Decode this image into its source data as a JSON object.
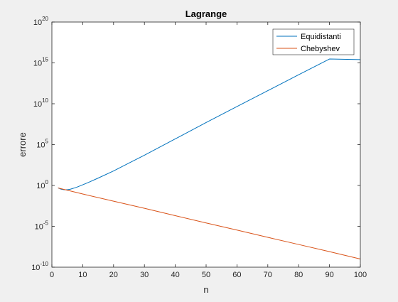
{
  "chart_data": {
    "type": "line",
    "title": "Lagrange",
    "xlabel": "n",
    "ylabel": "errore",
    "xlim": [
      0,
      100
    ],
    "ylim": [
      1e-10,
      1e+20
    ],
    "yscale": "log",
    "xticks": [
      0,
      10,
      20,
      30,
      40,
      50,
      60,
      70,
      80,
      90,
      100
    ],
    "yticks": [
      {
        "base": "10",
        "exp": "-10",
        "value": 1e-10
      },
      {
        "base": "10",
        "exp": "-5",
        "value": 1e-05
      },
      {
        "base": "10",
        "exp": "0",
        "value": 1
      },
      {
        "base": "10",
        "exp": "5",
        "value": 100000.0
      },
      {
        "base": "10",
        "exp": "10",
        "value": 10000000000.0
      },
      {
        "base": "10",
        "exp": "15",
        "value": 1000000000000000.0
      },
      {
        "base": "10",
        "exp": "20",
        "value": 1e+20
      }
    ],
    "grid": false,
    "legend": "top-right",
    "series": [
      {
        "name": "Equidistanti",
        "color": "#0072bd",
        "x": [
          2,
          3,
          4,
          5,
          6,
          8,
          10,
          12,
          15,
          20,
          25,
          30,
          40,
          50,
          60,
          70,
          80,
          90,
          100
        ],
        "y": [
          0.5,
          0.35,
          0.3,
          0.3,
          0.35,
          0.6,
          1.2,
          2.5,
          8,
          60,
          550,
          5000,
          500000.0,
          50000000.0,
          4500000000.0,
          400000000000.0,
          35000000000000.0,
          3000000000000000.0,
          2500000000000000.0
        ]
      },
      {
        "name": "Chebyshev",
        "color": "#d95319",
        "x": [
          2,
          10,
          20,
          30,
          40,
          50,
          60,
          70,
          80,
          90,
          100
        ],
        "y": [
          0.5,
          0.09,
          0.012,
          0.0016,
          0.0002,
          2.6e-05,
          3.5e-06,
          4.5e-07,
          6e-08,
          8e-09,
          1e-09
        ]
      }
    ]
  }
}
